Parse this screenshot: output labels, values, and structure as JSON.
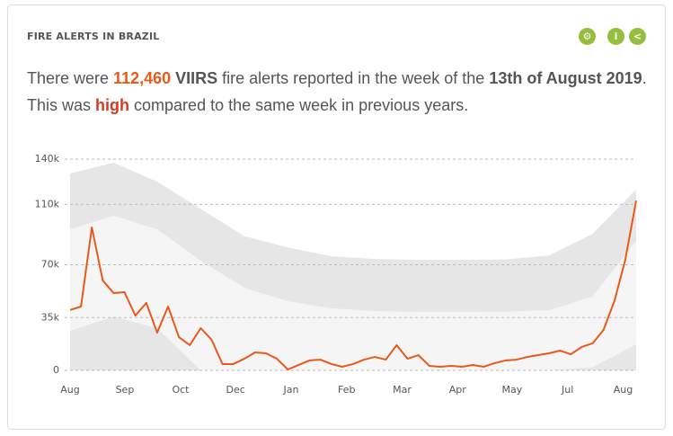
{
  "header": {
    "title": "FIRE ALERTS IN BRAZIL"
  },
  "sentence": {
    "parts": [
      {
        "text": "There were ",
        "style": "plain"
      },
      {
        "text": "112,460",
        "style": "count"
      },
      {
        "text": " VIIRS",
        "style": "bold"
      },
      {
        "text": " fire alerts reported in the week of the ",
        "style": "plain"
      },
      {
        "text": "13th of August 2019",
        "style": "bold"
      },
      {
        "text": ". This was ",
        "style": "plain"
      },
      {
        "text": "high",
        "style": "status"
      },
      {
        "text": " compared to the same week in previous years.",
        "style": "plain"
      }
    ]
  },
  "chart_data": {
    "type": "line",
    "x": [
      0,
      1,
      2,
      3,
      4,
      5,
      6,
      7,
      8,
      9,
      10,
      11,
      12,
      13,
      14,
      15,
      16,
      17,
      18,
      19,
      20,
      21,
      22,
      23,
      24,
      25,
      26,
      27,
      28,
      29,
      30,
      31,
      32,
      33,
      34,
      35,
      36,
      37,
      38,
      39,
      40,
      41,
      42,
      43,
      44,
      45,
      46,
      47,
      48,
      49,
      50,
      51,
      52
    ],
    "series": [
      {
        "color": "#e8591a",
        "values": [
          40000,
          42300,
          94700,
          59600,
          51200,
          51800,
          36300,
          44700,
          25000,
          42300,
          22000,
          16700,
          28000,
          20300,
          4200,
          4200,
          7700,
          11900,
          11300,
          7700,
          600,
          3600,
          6600,
          7100,
          4200,
          2400,
          4200,
          7100,
          8900,
          7100,
          16700,
          7700,
          10100,
          3000,
          2400,
          3000,
          2400,
          3600,
          2400,
          4800,
          6600,
          7100,
          8900,
          10100,
          11300,
          13100,
          10700,
          15500,
          17900,
          26800,
          45900,
          73300,
          112460
        ]
      }
    ],
    "bands": [
      {
        "color": "#e6e6e6",
        "x": [
          0,
          4,
          8,
          12,
          16,
          20,
          24,
          28,
          32,
          36,
          40,
          44,
          48,
          52
        ],
        "upper": [
          130500,
          137600,
          125000,
          107000,
          89000,
          81500,
          75600,
          73800,
          73300,
          73300,
          73500,
          76200,
          90500,
          120000
        ],
        "lower": [
          0,
          0,
          0,
          0,
          0,
          0,
          0,
          0,
          0,
          0,
          0,
          0,
          0,
          0
        ]
      },
      {
        "color": "#f5f5f5",
        "x": [
          0,
          4,
          8,
          12,
          16,
          20,
          24,
          28,
          32,
          36,
          40,
          44,
          48,
          52
        ],
        "upper": [
          93500,
          102500,
          93500,
          72700,
          54800,
          45900,
          41100,
          39300,
          38700,
          38700,
          38900,
          39900,
          48900,
          85800
        ],
        "lower": [
          26200,
          35700,
          28000,
          0,
          0,
          0,
          0,
          0,
          0,
          0,
          0,
          0,
          2000,
          17300
        ]
      }
    ],
    "xlim": [
      0,
      52
    ],
    "xticks": [
      {
        "value": 0,
        "label": "Aug"
      },
      {
        "value": 5.03,
        "label": "Sep"
      },
      {
        "value": 10.15,
        "label": "Oct"
      },
      {
        "value": 15.2,
        "label": "Dec"
      },
      {
        "value": 20.3,
        "label": "Jan"
      },
      {
        "value": 25.4,
        "label": "Feb"
      },
      {
        "value": 30.5,
        "label": "Mar"
      },
      {
        "value": 35.6,
        "label": "Apr"
      },
      {
        "value": 40.6,
        "label": "May"
      },
      {
        "value": 45.7,
        "label": "Jul"
      },
      {
        "value": 50.8,
        "label": "Aug"
      }
    ],
    "ylim": [
      0,
      140000
    ],
    "yticks": [
      0,
      {
        "value": 35000,
        "label": "35k"
      },
      {
        "value": 70000,
        "label": "70k"
      },
      {
        "value": 110000,
        "label": "110k"
      },
      {
        "value": 140000,
        "label": "140k"
      }
    ],
    "grid": true
  }
}
